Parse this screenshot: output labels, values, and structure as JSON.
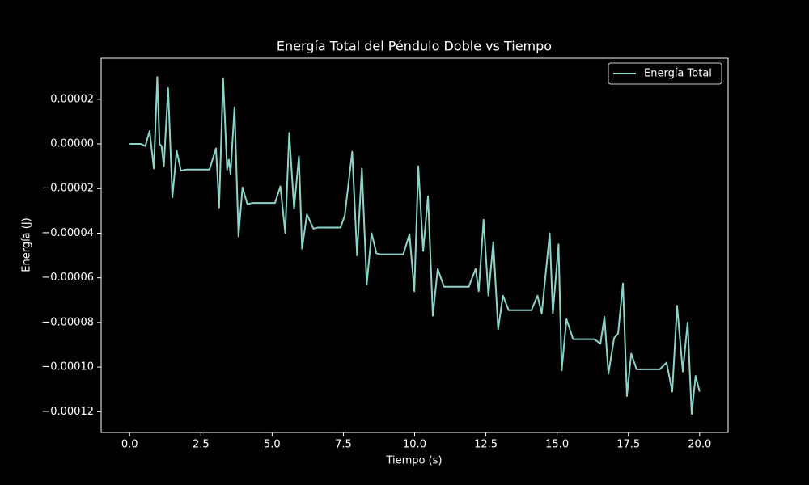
{
  "chart_data": {
    "type": "line",
    "title": "Energía Total del Péndulo Doble vs Tiempo",
    "xlabel": "Tiempo (s)",
    "ylabel": "Energía (J)",
    "x": [
      0,
      0.4,
      0.55,
      0.7,
      0.85,
      0.97,
      1.05,
      1.12,
      1.2,
      1.35,
      1.5,
      1.65,
      1.8,
      2.0,
      2.8,
      3.03,
      3.14,
      3.28,
      3.42,
      3.48,
      3.54,
      3.68,
      3.82,
      3.96,
      4.13,
      4.3,
      5.1,
      5.29,
      5.46,
      5.6,
      5.77,
      5.94,
      6.05,
      6.22,
      6.45,
      6.6,
      7.4,
      7.55,
      7.81,
      7.98,
      8.15,
      8.32,
      8.49,
      8.66,
      8.8,
      9.6,
      9.82,
      9.99,
      10.13,
      10.3,
      10.47,
      10.64,
      10.81,
      11.03,
      11.9,
      12.14,
      12.25,
      12.42,
      12.59,
      12.76,
      12.93,
      13.1,
      13.3,
      14.1,
      14.31,
      14.46,
      14.74,
      14.85,
      15.05,
      15.16,
      15.33,
      15.56,
      16.3,
      16.52,
      16.66,
      16.8,
      17.0,
      17.14,
      17.31,
      17.45,
      17.6,
      17.79,
      18.6,
      18.84,
      19.04,
      19.21,
      19.41,
      19.58,
      19.72,
      19.86,
      20.0
    ],
    "series": [
      {
        "name": "Energía Total",
        "color": "#8dd3c7",
        "values": [
          0,
          0,
          -1e-06,
          5.8e-06,
          -1.1e-05,
          3e-05,
          0,
          -1e-06,
          -1e-05,
          2.5e-05,
          -2.4e-05,
          -3e-06,
          -1.2e-05,
          -1.15e-05,
          -1.15e-05,
          -2e-06,
          -2.85e-05,
          2.95e-05,
          -1.15e-05,
          -7e-06,
          -1.35e-05,
          1.65e-05,
          -4.15e-05,
          -1.95e-05,
          -2.7e-05,
          -2.65e-05,
          -2.65e-05,
          -1.9e-05,
          -4e-05,
          5e-06,
          -2.9e-05,
          -5.5e-06,
          -4.7e-05,
          -3.15e-05,
          -3.8e-05,
          -3.75e-05,
          -3.75e-05,
          -3.2e-05,
          -3.5e-06,
          -5e-05,
          -1.1e-05,
          -6.3e-05,
          -4e-05,
          -4.9e-05,
          -4.95e-05,
          -4.95e-05,
          -4.05e-05,
          -6.6e-05,
          -1e-05,
          -4.8e-05,
          -2.35e-05,
          -7.7e-05,
          -5.6e-05,
          -6.4e-05,
          -6.4e-05,
          -5.6e-05,
          -6.6e-05,
          -3.4e-05,
          -6.8e-05,
          -4.4e-05,
          -8.3e-05,
          -6.8e-05,
          -7.45e-05,
          -7.45e-05,
          -6.8e-05,
          -7.6e-05,
          -4e-05,
          -7.6e-05,
          -4.5e-05,
          -0.0001015,
          -7.85e-05,
          -8.75e-05,
          -8.75e-05,
          -8.95e-05,
          -7.75e-05,
          -0.000103,
          -8.7e-05,
          -8.5e-05,
          -6.25e-05,
          -0.000113,
          -9.4e-05,
          -0.000101,
          -0.000101,
          -9.8e-05,
          -0.000111,
          -7.25e-05,
          -0.000102,
          -8e-05,
          -0.000121,
          -0.000104,
          -0.000111
        ]
      }
    ],
    "xlim": [
      -1,
      21
    ],
    "ylim": [
      -0.0001293,
      3.84e-05
    ],
    "xticks": [
      {
        "value": 0,
        "label": "0.0"
      },
      {
        "value": 2.5,
        "label": "2.5"
      },
      {
        "value": 5,
        "label": "5.0"
      },
      {
        "value": 7.5,
        "label": "7.5"
      },
      {
        "value": 10,
        "label": "10.0"
      },
      {
        "value": 12.5,
        "label": "12.5"
      },
      {
        "value": 15,
        "label": "15.0"
      },
      {
        "value": 17.5,
        "label": "17.5"
      },
      {
        "value": 20,
        "label": "20.0"
      }
    ],
    "yticks": [
      {
        "value": 2e-05,
        "label": "0.00002"
      },
      {
        "value": 0,
        "label": "0.00000"
      },
      {
        "value": -2e-05,
        "label": "−0.00002"
      },
      {
        "value": -4e-05,
        "label": "−0.00004"
      },
      {
        "value": -6e-05,
        "label": "−0.00006"
      },
      {
        "value": -8e-05,
        "label": "−0.00008"
      },
      {
        "value": -0.0001,
        "label": "−0.00010"
      },
      {
        "value": -0.00012,
        "label": "−0.00012"
      }
    ],
    "grid": false,
    "legend": "upper right"
  }
}
